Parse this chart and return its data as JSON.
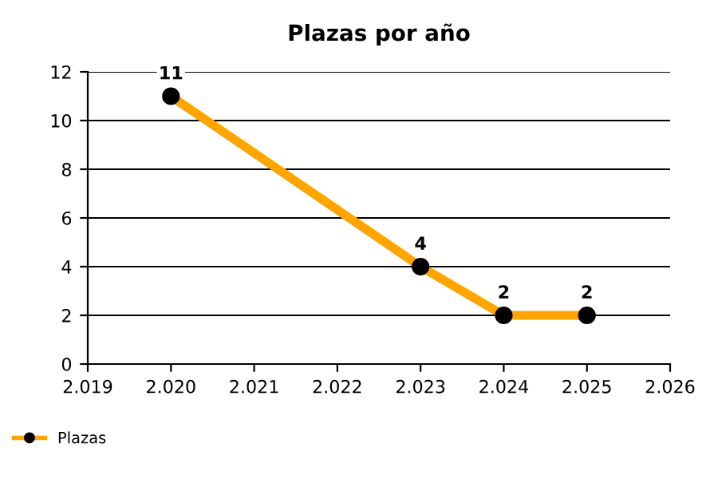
{
  "chart_data": {
    "type": "line",
    "title": "Plazas por año",
    "x": [
      2020,
      2023,
      2024,
      2025
    ],
    "series": [
      {
        "name": "Plazas",
        "color": "#ffa500",
        "values": [
          11,
          4,
          2,
          2
        ]
      }
    ],
    "xlim": [
      2019,
      2026
    ],
    "xticks": [
      {
        "value": 2019,
        "label": "2.019"
      },
      {
        "value": 2020,
        "label": "2.020"
      },
      {
        "value": 2021,
        "label": "2.021"
      },
      {
        "value": 2022,
        "label": "2.022"
      },
      {
        "value": 2023,
        "label": "2.023"
      },
      {
        "value": 2024,
        "label": "2.024"
      },
      {
        "value": 2025,
        "label": "2.025"
      },
      {
        "value": 2026,
        "label": "2.026"
      }
    ],
    "ylim": [
      0,
      12
    ],
    "yticks": [
      0,
      2,
      4,
      6,
      8,
      10,
      12
    ],
    "grid": "y",
    "legend": "bottom left",
    "marker": "circle",
    "line_style": "solid",
    "data_labels": true
  }
}
